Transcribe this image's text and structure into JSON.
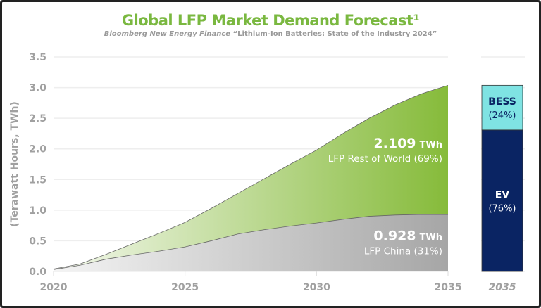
{
  "chart_data": {
    "type": "area",
    "title": "Global LFP Market Demand Forecast¹",
    "subtitle_source": "Bloomberg New Energy Finance",
    "subtitle_report": "“Lithium-Ion Batteries: State of the Industry 2024”",
    "ylabel": "(Terawatt Hours, TWh)",
    "ylim": [
      0,
      3.5
    ],
    "yticks": [
      "0.0",
      "0.5",
      "1.0",
      "1.5",
      "2.0",
      "2.5",
      "3.0",
      "3.5"
    ],
    "xticks": [
      "2020",
      "2025",
      "2030",
      "2035"
    ],
    "x": [
      2020,
      2021,
      2022,
      2023,
      2024,
      2025,
      2026,
      2027,
      2028,
      2029,
      2030,
      2031,
      2032,
      2033,
      2034,
      2035
    ],
    "series": [
      {
        "name": "LFP China",
        "values": [
          0.03,
          0.1,
          0.2,
          0.27,
          0.33,
          0.4,
          0.5,
          0.61,
          0.68,
          0.74,
          0.79,
          0.85,
          0.9,
          0.92,
          0.93,
          0.928
        ],
        "color": "#a8a8a8"
      },
      {
        "name": "LFP Rest of World",
        "values": [
          0.01,
          0.02,
          0.08,
          0.18,
          0.29,
          0.4,
          0.53,
          0.66,
          0.83,
          1.01,
          1.19,
          1.4,
          1.6,
          1.8,
          1.97,
          2.109
        ],
        "color": "#7ab840"
      }
    ],
    "annotations": {
      "row_value": "2.109",
      "row_unit": "TWh",
      "row_label": "LFP Rest of World (69%)",
      "china_value": "0.928",
      "china_unit": "TWh",
      "china_label": "LFP China (31%)"
    },
    "side_bar": {
      "xlabel": "2035",
      "segments": [
        {
          "name": "EV",
          "pct_label": "(76%)",
          "share": 0.76,
          "color": "#0a2463"
        },
        {
          "name": "BESS",
          "pct_label": "(24%)",
          "share": 0.24,
          "color": "#7fe3e3"
        }
      ],
      "total": 3.037
    },
    "grid": true
  }
}
